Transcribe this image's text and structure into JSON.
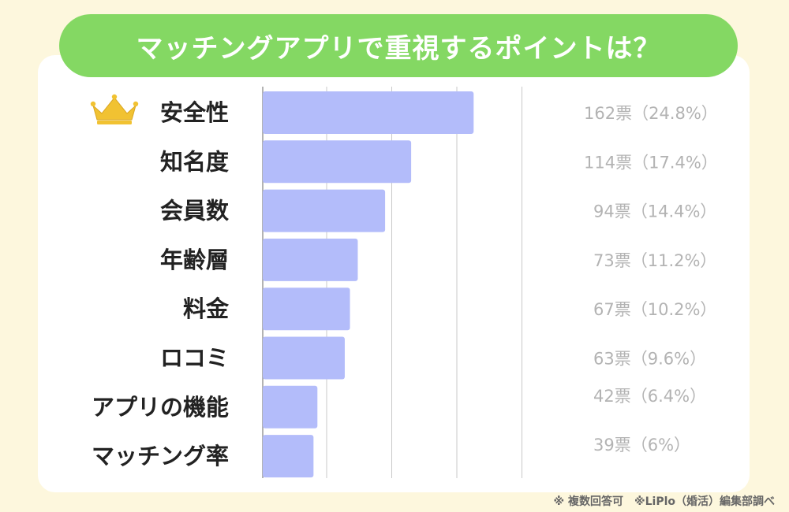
{
  "footnote": "※ 複数回答可　※LiPlo（婚活）編集部調べ",
  "colors": {
    "background": "#fdf7dd",
    "banner": "#84d863",
    "bar": "#b3bcfa",
    "crown": "#f1c232"
  },
  "icons": {
    "top_rank": "crown-icon"
  },
  "chart_data": {
    "type": "bar",
    "orientation": "horizontal",
    "title": "マッチングアプリで重視するポイントは？",
    "categories": [
      "安全性",
      "知名度",
      "会員数",
      "年齢層",
      "料金",
      "ロコミ",
      "アプリの機能",
      "マッチング率"
    ],
    "values": [
      162,
      114,
      94,
      73,
      67,
      63,
      42,
      39
    ],
    "value_labels": [
      "162票（24.8%）",
      "114票（17.4%）",
      "94票（14.4%）",
      "73票（11.2%）",
      "67票（10.2%）",
      "63票（9.6%）",
      "42票（6.4%）",
      "39票（6%）"
    ],
    "xlim": [
      0,
      240
    ],
    "grid": true,
    "gridlines": [
      50,
      100,
      150,
      200
    ],
    "xlabel": "",
    "ylabel": ""
  }
}
